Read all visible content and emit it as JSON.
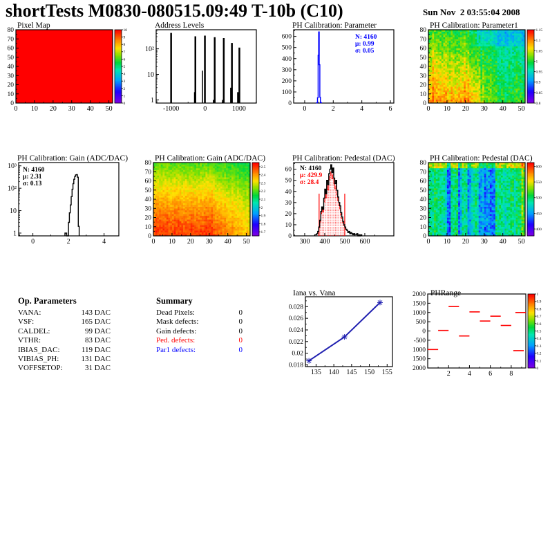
{
  "header": {
    "title": "shortTests M0830-080515.09:49 T-10b (C10)",
    "timestamp": "Sun Nov  2 03:55:04 2008"
  },
  "op_parameters": {
    "title": "Op. Parameters",
    "rows": [
      {
        "label": "VANA:",
        "value": "143 DAC",
        "color": "#000000"
      },
      {
        "label": "VSF:",
        "value": "165 DAC",
        "color": "#000000"
      },
      {
        "label": "CALDEL:",
        "value": "99 DAC",
        "color": "#000000"
      },
      {
        "label": "VTHR:",
        "value": "83 DAC",
        "color": "#000000"
      },
      {
        "label": "IBIAS_DAC:",
        "value": "119 DAC",
        "color": "#000000"
      },
      {
        "label": "VIBIAS_PH:",
        "value": "131 DAC",
        "color": "#000000"
      },
      {
        "label": "VOFFSETOP:",
        "value": "31 DAC",
        "color": "#000000"
      }
    ]
  },
  "summary": {
    "title": "Summary",
    "rows": [
      {
        "label": "Dead Pixels:",
        "value": "0",
        "color": "#000000"
      },
      {
        "label": "Mask defects:",
        "value": "0",
        "color": "#000000"
      },
      {
        "label": "Gain defects:",
        "value": "0",
        "color": "#000000"
      },
      {
        "label": "Ped. defects:",
        "value": "0",
        "color": "#ff0000"
      },
      {
        "label": "Par1 defects:",
        "value": "0",
        "color": "#0000ff"
      }
    ]
  },
  "chart_data": [
    {
      "id": "pixel_map",
      "type": "heatmap",
      "title": "Pixel Map",
      "pattern": "solid",
      "value": 10,
      "xlim": [
        0,
        52
      ],
      "ylim": [
        0,
        80
      ],
      "xticks": [
        0,
        10,
        20,
        30,
        40,
        50
      ],
      "yticks": [
        0,
        10,
        20,
        30,
        40,
        50,
        60,
        70,
        80
      ],
      "colorbar": {
        "min": 0,
        "max": 10,
        "ticks": [
          10,
          9,
          8,
          7,
          6,
          5,
          4,
          3,
          2,
          1,
          0
        ]
      }
    },
    {
      "id": "address_levels",
      "type": "spikes",
      "title": "Address Levels",
      "ylog": true,
      "color": "#000000",
      "xlim": [
        -1440,
        1510
      ],
      "xticks": [
        -1000,
        0,
        1000
      ],
      "ylim": [
        0.75,
        560
      ],
      "ylog_labels": [
        "1",
        "10",
        "10²"
      ],
      "spikes": [
        [
          -1000,
          420,
          2.5
        ],
        [
          -310,
          2,
          1.5
        ],
        [
          -285,
          310,
          2.5
        ],
        [
          -75,
          14,
          1.5
        ],
        [
          -5,
          330,
          2.5
        ],
        [
          245,
          1,
          1.5
        ],
        [
          285,
          285,
          2.5
        ],
        [
          515,
          1,
          1.5
        ],
        [
          550,
          265,
          2.5
        ],
        [
          755,
          3,
          1.5
        ],
        [
          790,
          170,
          2.5
        ],
        [
          975,
          2,
          3
        ],
        [
          1010,
          112,
          2.5
        ]
      ]
    },
    {
      "id": "ph_parameter",
      "type": "hist",
      "title": "PH Calibration: Parameter",
      "color": "#0000ff",
      "ylog": false,
      "xlim": [
        -0.77,
        6.24
      ],
      "xticks": [
        0,
        2,
        4,
        6
      ],
      "ylim": [
        0,
        660
      ],
      "yticks": [
        0,
        100,
        200,
        300,
        400,
        500,
        600
      ],
      "bin_width": 0.04,
      "bins": [
        [
          0.82,
          1
        ],
        [
          0.86,
          4
        ],
        [
          0.9,
          48
        ],
        [
          0.94,
          430
        ],
        [
          0.98,
          640
        ],
        [
          1.02,
          345
        ],
        [
          1.06,
          52
        ],
        [
          1.1,
          6
        ],
        [
          1.14,
          2
        ]
      ],
      "stats": {
        "lines": [
          "N: 4160",
          "μ: 0.99",
          "σ: 0.05"
        ],
        "colors": [
          "#0000ff",
          "#0000ff",
          "#0000ff"
        ]
      }
    },
    {
      "id": "ph_parameter1",
      "type": "heatmap",
      "title": "PH Calibration: Parameter1",
      "pattern": "param1",
      "xlim": [
        0,
        52
      ],
      "ylim": [
        0,
        80
      ],
      "xticks": [
        0,
        10,
        20,
        30,
        40,
        50
      ],
      "yticks": [
        0,
        10,
        20,
        30,
        40,
        50,
        60,
        70,
        80
      ],
      "colorbar": {
        "min": 0.8,
        "max": 1.15,
        "ticks": [
          1.15,
          1.1,
          1.05,
          1,
          0.95,
          0.9,
          0.85,
          0.8
        ]
      }
    },
    {
      "id": "gain_hist",
      "type": "hist",
      "title": "PH Calibration: Gain (ADC/DAC)",
      "color": "#000000",
      "ylog": true,
      "xlim": [
        -0.8,
        4.83
      ],
      "xticks": [
        0,
        2,
        4
      ],
      "ylim": [
        0.75,
        1400
      ],
      "ylog_labels": [
        "1",
        "10",
        "10²",
        "10³"
      ],
      "bin_width": 0.05,
      "bins": [
        [
          1.8,
          1
        ],
        [
          1.85,
          1
        ],
        [
          1.9,
          0
        ],
        [
          1.95,
          0
        ],
        [
          2.0,
          3
        ],
        [
          2.05,
          8
        ],
        [
          2.1,
          18
        ],
        [
          2.15,
          42
        ],
        [
          2.2,
          90
        ],
        [
          2.25,
          160
        ],
        [
          2.3,
          250
        ],
        [
          2.35,
          340
        ],
        [
          2.4,
          395
        ],
        [
          2.45,
          405
        ],
        [
          2.5,
          310
        ],
        [
          2.55,
          2
        ]
      ],
      "stats": {
        "lines": [
          "N: 4160",
          "μ: 2.31",
          "σ: 0.13"
        ],
        "colors": [
          "#000000",
          "#000000",
          "#000000"
        ]
      }
    },
    {
      "id": "gain_map",
      "type": "heatmap",
      "title": "PH Calibration: Gain (ADC/DAC)",
      "pattern": "gain",
      "xlim": [
        0,
        52
      ],
      "ylim": [
        0,
        80
      ],
      "xticks": [
        0,
        10,
        20,
        30,
        40,
        50
      ],
      "yticks": [
        0,
        10,
        20,
        30,
        40,
        50,
        60,
        70,
        80
      ],
      "colorbar": {
        "min": 1.65,
        "max": 2.55,
        "ticks": [
          2.5,
          2.4,
          2.3,
          2.2,
          2.1,
          2,
          1.9,
          1.8,
          1.7
        ]
      }
    },
    {
      "id": "pedestal_hist",
      "type": "hist",
      "title": "PH Calibration: Pedestal (DAC)",
      "color": "#000000",
      "ylog": false,
      "xlim": [
        245,
        745
      ],
      "xticks": [
        300,
        400,
        500,
        600
      ],
      "ylim": [
        0,
        66
      ],
      "yticks": [
        0,
        10,
        20,
        30,
        40,
        50,
        60
      ],
      "bin_width": 5,
      "bins": [
        [
          350,
          1
        ],
        [
          355,
          1
        ],
        [
          360,
          2
        ],
        [
          365,
          4
        ],
        [
          370,
          8
        ],
        [
          375,
          14
        ],
        [
          380,
          22
        ],
        [
          385,
          26
        ],
        [
          390,
          24
        ],
        [
          395,
          34
        ],
        [
          400,
          42
        ],
        [
          405,
          38
        ],
        [
          410,
          50
        ],
        [
          415,
          46
        ],
        [
          420,
          56
        ],
        [
          425,
          60
        ],
        [
          430,
          64
        ],
        [
          435,
          57
        ],
        [
          440,
          61
        ],
        [
          445,
          52
        ],
        [
          450,
          47
        ],
        [
          455,
          50
        ],
        [
          460,
          41
        ],
        [
          465,
          35
        ],
        [
          470,
          30
        ],
        [
          475,
          27
        ],
        [
          480,
          21
        ],
        [
          485,
          17
        ],
        [
          490,
          13
        ],
        [
          495,
          10
        ],
        [
          500,
          8
        ],
        [
          505,
          6
        ],
        [
          510,
          5
        ],
        [
          515,
          3
        ],
        [
          520,
          4
        ],
        [
          525,
          2
        ],
        [
          530,
          3
        ],
        [
          535,
          2
        ],
        [
          540,
          1
        ],
        [
          545,
          2
        ],
        [
          550,
          1
        ],
        [
          555,
          1
        ],
        [
          560,
          2
        ],
        [
          565,
          0
        ],
        [
          570,
          1
        ],
        [
          575,
          0
        ],
        [
          580,
          1
        ]
      ],
      "fill_clip": [
        372,
        500
      ],
      "vlines": [
        372,
        500
      ],
      "vline_height": 38,
      "stats": {
        "lines": [
          "N: 4160",
          "μ: 429.9",
          "σ: 28.4"
        ],
        "colors": [
          "#000000",
          "#ff0000",
          "#ff0000"
        ]
      }
    },
    {
      "id": "pedestal_map",
      "type": "heatmap",
      "title": "PH Calibration: Pedestal (DAC)",
      "pattern": "pedestal",
      "xlim": [
        0,
        52
      ],
      "ylim": [
        0,
        80
      ],
      "xticks": [
        0,
        10,
        20,
        30,
        40,
        50
      ],
      "yticks": [
        0,
        10,
        20,
        30,
        40,
        50,
        60,
        70,
        80
      ],
      "colorbar": {
        "min": 378,
        "max": 612,
        "ticks": [
          600,
          550,
          500,
          450,
          400
        ]
      }
    },
    {
      "id": "iana_vs_vana",
      "type": "line",
      "title": "Iana vs. Vana",
      "color": "#2020b0",
      "points": [
        [
          133,
          0.0187
        ],
        [
          143,
          0.0228
        ],
        [
          153,
          0.0287
        ]
      ],
      "xlim": [
        132,
        156.5
      ],
      "xticks": [
        135,
        140,
        145,
        150,
        155
      ],
      "ylim": [
        0.0177,
        0.0297
      ],
      "yticks": [
        0.018,
        0.02,
        0.022,
        0.024,
        0.026,
        0.028
      ]
    },
    {
      "id": "ph_range",
      "type": "segments",
      "title": "PHRange",
      "color": "#ff0000",
      "xlim": [
        0,
        9.4
      ],
      "xticks": [
        2,
        4,
        6,
        8
      ],
      "ylim": [
        -2000,
        2000
      ],
      "yticks": [
        {
          "label": "2000",
          "value": 2000
        },
        {
          "label": "1500",
          "value": 1500
        },
        {
          "label": "1000",
          "value": 1000
        },
        {
          "label": "500",
          "value": 500
        },
        {
          "label": "0",
          "value": 0
        },
        {
          "label": "-500",
          "value": -500
        },
        {
          "label": "1000",
          "value": -1000
        },
        {
          "label": "1500",
          "value": -1500
        },
        {
          "label": "2000",
          "value": -2000
        }
      ],
      "segments": [
        [
          0,
          1,
          -1000
        ],
        [
          1,
          2,
          30
        ],
        [
          2,
          3,
          1320
        ],
        [
          3,
          4,
          -270
        ],
        [
          4,
          5,
          1030
        ],
        [
          5,
          6,
          540
        ],
        [
          6,
          7,
          800
        ],
        [
          7,
          8,
          300
        ],
        [
          8.2,
          9.2,
          -1060
        ],
        [
          8.4,
          9.4,
          1000
        ]
      ],
      "colorbar": {
        "min": 0,
        "max": 1,
        "ticks": [
          1,
          0.9,
          0.8,
          0.7,
          0.6,
          0.5,
          0.4,
          0.3,
          0.2,
          0.1,
          0
        ]
      }
    }
  ]
}
